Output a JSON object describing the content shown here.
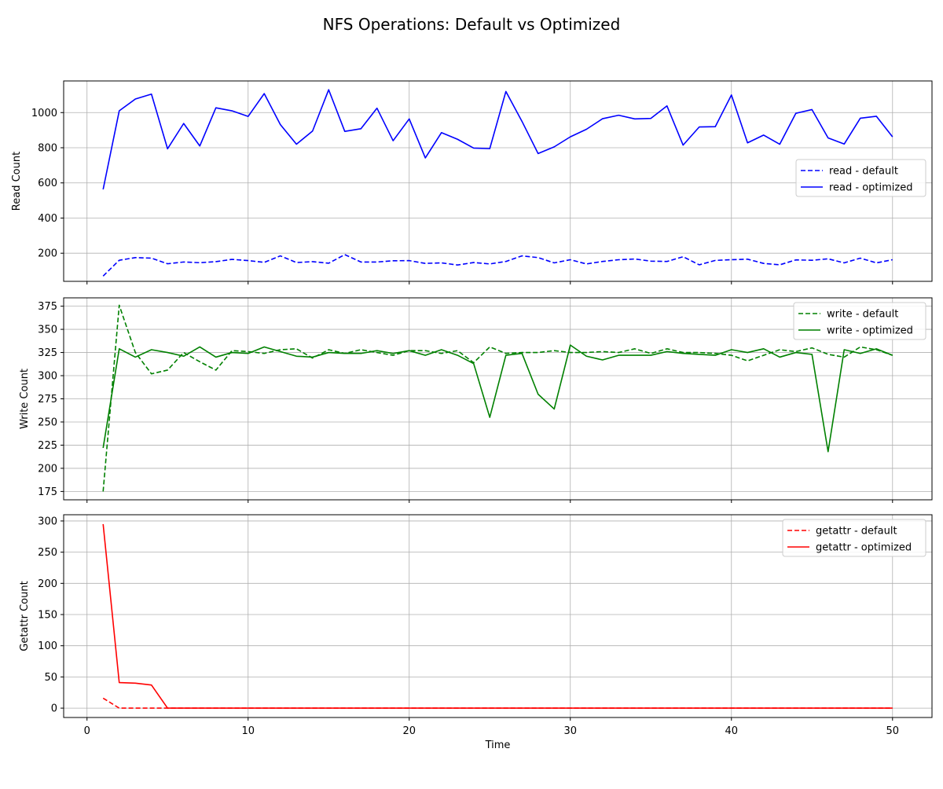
{
  "figure": {
    "title": "NFS Operations: Default vs Optimized"
  },
  "colors": {
    "read": "#0000ff",
    "write": "#008000",
    "getattr": "#ff0000",
    "grid": "#b0b0b0"
  },
  "chart_data": [
    {
      "type": "line",
      "ylabel": "Read Count",
      "xlabel": "",
      "xlim": [
        -1.45,
        52.45
      ],
      "ylim": [
        40,
        1180
      ],
      "yticks": [
        200,
        400,
        600,
        800,
        1000
      ],
      "xticks": [
        0,
        10,
        20,
        30,
        40,
        50
      ],
      "show_xtick_labels": false,
      "grid": true,
      "legend_position": "center-right",
      "x": [
        1,
        2,
        3,
        4,
        5,
        6,
        7,
        8,
        9,
        10,
        11,
        12,
        13,
        14,
        15,
        16,
        17,
        18,
        19,
        20,
        21,
        22,
        23,
        24,
        25,
        26,
        27,
        28,
        29,
        30,
        31,
        32,
        33,
        34,
        35,
        36,
        37,
        38,
        39,
        40,
        41,
        42,
        43,
        44,
        45,
        46,
        47,
        48,
        49,
        50
      ],
      "series": [
        {
          "name": "read - default",
          "color": "#0000ff",
          "style": "dashed",
          "values": [
            70,
            160,
            175,
            172,
            140,
            150,
            146,
            152,
            165,
            158,
            148,
            185,
            147,
            152,
            143,
            192,
            150,
            150,
            157,
            158,
            142,
            145,
            133,
            147,
            139,
            153,
            185,
            175,
            145,
            163,
            139,
            153,
            163,
            167,
            155,
            153,
            180,
            134,
            159,
            163,
            166,
            142,
            134,
            162,
            160,
            168,
            145,
            172,
            145,
            163
          ]
        },
        {
          "name": "read - optimized",
          "color": "#0000ff",
          "style": "solid",
          "values": [
            563,
            1010,
            1077,
            1105,
            794,
            938,
            810,
            1027,
            1010,
            978,
            1108,
            932,
            820,
            895,
            1130,
            893,
            908,
            1025,
            840,
            964,
            742,
            886,
            848,
            798,
            795,
            1120,
            950,
            767,
            805,
            862,
            905,
            965,
            985,
            964,
            967,
            1038,
            815,
            918,
            920,
            1100,
            828,
            872,
            820,
            996,
            1017,
            856,
            821,
            968,
            979,
            862
          ]
        }
      ]
    },
    {
      "type": "line",
      "ylabel": "Write Count",
      "xlabel": "",
      "xlim": [
        -1.45,
        52.45
      ],
      "ylim": [
        166,
        384
      ],
      "yticks": [
        175,
        200,
        225,
        250,
        275,
        300,
        325,
        350,
        375
      ],
      "xticks": [
        0,
        10,
        20,
        30,
        40,
        50
      ],
      "show_xtick_labels": false,
      "grid": true,
      "legend_position": "top-right",
      "x": [
        1,
        2,
        3,
        4,
        5,
        6,
        7,
        8,
        9,
        10,
        11,
        12,
        13,
        14,
        15,
        16,
        17,
        18,
        19,
        20,
        21,
        22,
        23,
        24,
        25,
        26,
        27,
        28,
        29,
        30,
        31,
        32,
        33,
        34,
        35,
        36,
        37,
        38,
        39,
        40,
        41,
        42,
        43,
        44,
        45,
        46,
        47,
        48,
        49,
        50
      ],
      "series": [
        {
          "name": "write - default",
          "color": "#008000",
          "style": "dashed",
          "values": [
            175,
            376,
            325,
            302,
            306,
            325,
            315,
            306,
            327,
            326,
            324,
            328,
            329,
            319,
            328,
            324,
            328,
            325,
            322,
            327,
            327,
            324,
            327,
            314,
            331,
            324,
            325,
            325,
            327,
            325,
            325,
            326,
            325,
            329,
            324,
            329,
            325,
            325,
            324,
            322,
            316,
            322,
            328,
            326,
            330,
            323,
            320,
            331,
            328,
            322
          ]
        },
        {
          "name": "write - optimized",
          "color": "#008000",
          "style": "solid",
          "values": [
            222,
            329,
            320,
            328,
            325,
            321,
            331,
            320,
            325,
            324,
            331,
            326,
            321,
            320,
            325,
            324,
            324,
            327,
            324,
            327,
            322,
            328,
            322,
            313,
            255,
            322,
            324,
            280,
            264,
            333,
            321,
            317,
            322,
            322,
            322,
            326,
            324,
            323,
            322,
            328,
            325,
            329,
            320,
            325,
            323,
            218,
            328,
            324,
            329,
            322
          ]
        }
      ]
    },
    {
      "type": "line",
      "ylabel": "Getattr Count",
      "xlabel": "Time",
      "xlim": [
        -1.45,
        52.45
      ],
      "ylim": [
        -15,
        310
      ],
      "yticks": [
        0,
        50,
        100,
        150,
        200,
        250,
        300
      ],
      "xticks": [
        0,
        10,
        20,
        30,
        40,
        50
      ],
      "show_xtick_labels": true,
      "grid": true,
      "legend_position": "top-right",
      "x": [
        1,
        2,
        3,
        4,
        5,
        6,
        7,
        8,
        9,
        10,
        11,
        12,
        13,
        14,
        15,
        16,
        17,
        18,
        19,
        20,
        21,
        22,
        23,
        24,
        25,
        26,
        27,
        28,
        29,
        30,
        31,
        32,
        33,
        34,
        35,
        36,
        37,
        38,
        39,
        40,
        41,
        42,
        43,
        44,
        45,
        46,
        47,
        48,
        49,
        50
      ],
      "series": [
        {
          "name": "getattr - default",
          "color": "#ff0000",
          "style": "dashed",
          "values": [
            16,
            0,
            0,
            0,
            0,
            0,
            0,
            0,
            0,
            0,
            0,
            0,
            0,
            0,
            0,
            0,
            0,
            0,
            0,
            0,
            0,
            0,
            0,
            0,
            0,
            0,
            0,
            0,
            0,
            0,
            0,
            0,
            0,
            0,
            0,
            0,
            0,
            0,
            0,
            0,
            0,
            0,
            0,
            0,
            0,
            0,
            0,
            0,
            0,
            0
          ]
        },
        {
          "name": "getattr - optimized",
          "color": "#ff0000",
          "style": "solid",
          "values": [
            295,
            41,
            40,
            37,
            0,
            0,
            0,
            0,
            0,
            0,
            0,
            0,
            0,
            0,
            0,
            0,
            0,
            0,
            0,
            0,
            0,
            0,
            0,
            0,
            0,
            0,
            0,
            0,
            0,
            0,
            0,
            0,
            0,
            0,
            0,
            0,
            0,
            0,
            0,
            0,
            0,
            0,
            0,
            0,
            0,
            0,
            0,
            0,
            0,
            0
          ]
        }
      ]
    }
  ]
}
